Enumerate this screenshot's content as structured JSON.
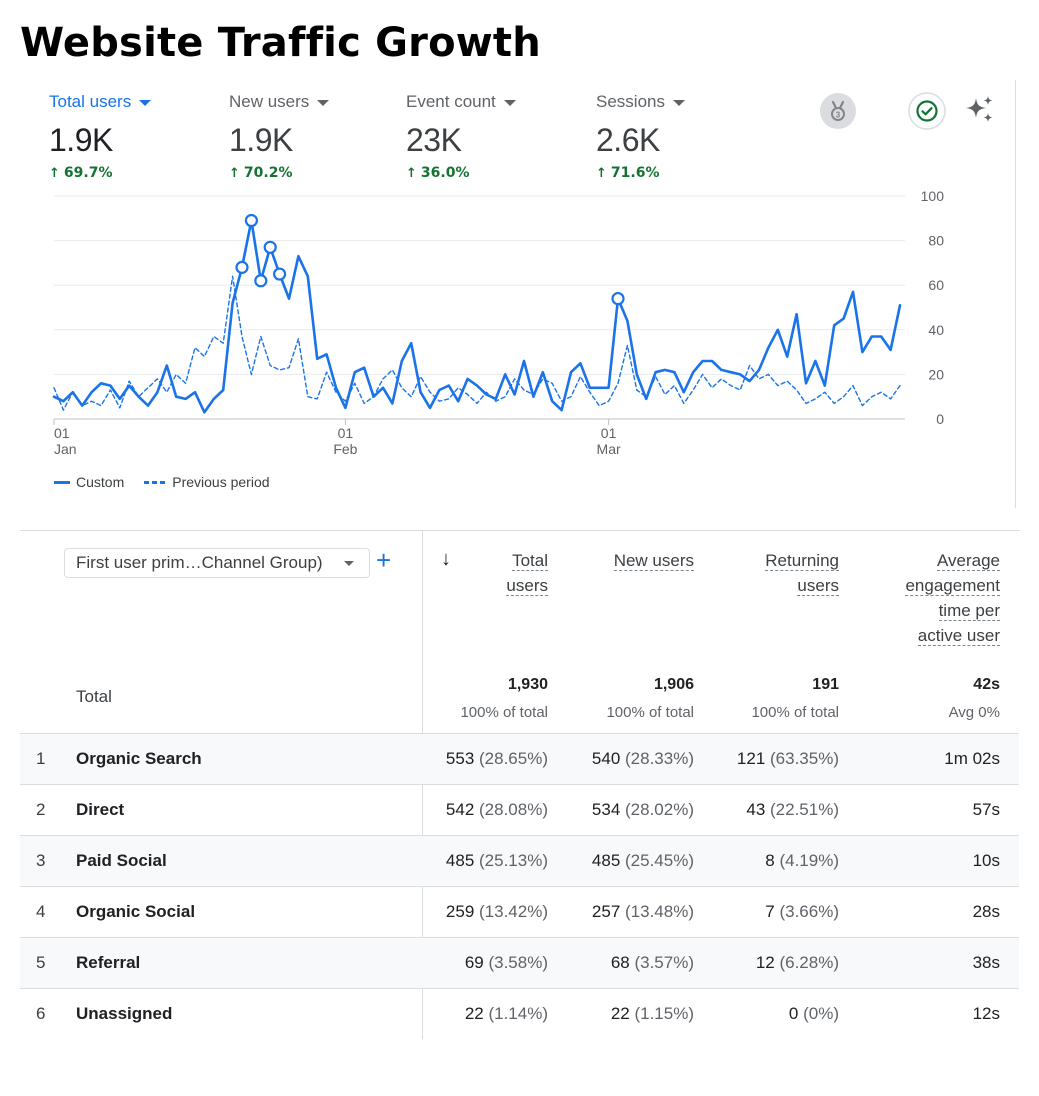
{
  "page_title": "Website Traffic Growth",
  "metrics": [
    {
      "label": "Total users",
      "value": "1.9K",
      "change": "69.7%",
      "active": true
    },
    {
      "label": "New users",
      "value": "1.9K",
      "change": "70.2%",
      "active": false
    },
    {
      "label": "Event count",
      "value": "23K",
      "change": "36.0%",
      "active": false
    },
    {
      "label": "Sessions",
      "value": "2.6K",
      "change": "71.6%",
      "active": false
    }
  ],
  "icons": {
    "insights_badge": "award-badge-icon",
    "status": "check-circle-icon",
    "ai": "sparkle-icon"
  },
  "colors": {
    "accent": "#1a73e8",
    "positive": "#137333",
    "grid": "#e8eaed"
  },
  "chart_data": {
    "type": "line",
    "y_ticks": [
      "100",
      "80",
      "60",
      "40",
      "20",
      "0"
    ],
    "ylim": [
      0,
      100
    ],
    "x_ticks": [
      {
        "day": "01",
        "month": "Jan"
      },
      {
        "day": "01",
        "month": "Feb"
      },
      {
        "day": "01",
        "month": "Mar"
      }
    ],
    "x_tick_index": [
      0,
      31,
      59
    ],
    "n_days": 91,
    "series": [
      {
        "name": "Custom",
        "style": "solid",
        "values": [
          10,
          8,
          12,
          6,
          12,
          16,
          15,
          9,
          15,
          10,
          6,
          12,
          24,
          10,
          9,
          12,
          3,
          9,
          13,
          52,
          68,
          89,
          62,
          77,
          65,
          54,
          73,
          64,
          27,
          29,
          14,
          5,
          21,
          23,
          10,
          14,
          7,
          26,
          34,
          12,
          5,
          13,
          15,
          8,
          18,
          15,
          11,
          9,
          20,
          11,
          26,
          10,
          21,
          8,
          4,
          21,
          25,
          14,
          14,
          14,
          54,
          44,
          20,
          9,
          21,
          22,
          21,
          12,
          21,
          26,
          26,
          22,
          21,
          20,
          17,
          22,
          32,
          40,
          28,
          47,
          16,
          26,
          15,
          42,
          45,
          57,
          30,
          37,
          37,
          31,
          51
        ],
        "markers": [
          20,
          21,
          22,
          23,
          24,
          60
        ]
      },
      {
        "name": "Previous period",
        "style": "dashed",
        "values": [
          14,
          4,
          12,
          6,
          8,
          6,
          13,
          5,
          17,
          10,
          14,
          18,
          12,
          20,
          16,
          32,
          28,
          37,
          34,
          64,
          37,
          20,
          37,
          24,
          22,
          23,
          36,
          10,
          9,
          21,
          12,
          8,
          16,
          7,
          10,
          18,
          22,
          14,
          10,
          19,
          12,
          8,
          9,
          14,
          11,
          7,
          12,
          8,
          10,
          18,
          13,
          11,
          18,
          16,
          8,
          10,
          19,
          12,
          6,
          8,
          16,
          33,
          13,
          10,
          19,
          11,
          15,
          7,
          13,
          20,
          14,
          18,
          15,
          13,
          24,
          18,
          20,
          15,
          17,
          13,
          7,
          9,
          12,
          7,
          10,
          15,
          6,
          10,
          12,
          9,
          15
        ]
      }
    ]
  },
  "legend": {
    "custom": "Custom",
    "previous": "Previous period"
  },
  "table": {
    "dimension_select": "First user prim…Channel Group)",
    "add_label": "+",
    "sort_arrow": "↓",
    "columns": [
      {
        "lines": [
          "Total",
          "users"
        ]
      },
      {
        "lines": [
          "New users"
        ]
      },
      {
        "lines": [
          "Returning",
          "users"
        ]
      },
      {
        "lines": [
          "Average",
          "engagement",
          "time per",
          "active user"
        ]
      }
    ],
    "total_label": "Total",
    "totals": [
      {
        "value": "1,930",
        "sub": "100% of total"
      },
      {
        "value": "1,906",
        "sub": "100% of total"
      },
      {
        "value": "191",
        "sub": "100% of total"
      },
      {
        "value": "42s",
        "sub": "Avg 0%"
      }
    ],
    "rows": [
      {
        "idx": "1",
        "name": "Organic Search",
        "c1": "553",
        "p1": "(28.65%)",
        "c2": "540",
        "p2": "(28.33%)",
        "c3": "121",
        "p3": "(63.35%)",
        "c4": "1m 02s"
      },
      {
        "idx": "2",
        "name": "Direct",
        "c1": "542",
        "p1": "(28.08%)",
        "c2": "534",
        "p2": "(28.02%)",
        "c3": "43",
        "p3": "(22.51%)",
        "c4": "57s"
      },
      {
        "idx": "3",
        "name": "Paid Social",
        "c1": "485",
        "p1": "(25.13%)",
        "c2": "485",
        "p2": "(25.45%)",
        "c3": "8",
        "p3": "(4.19%)",
        "c4": "10s"
      },
      {
        "idx": "4",
        "name": "Organic Social",
        "c1": "259",
        "p1": "(13.42%)",
        "c2": "257",
        "p2": "(13.48%)",
        "c3": "7",
        "p3": "(3.66%)",
        "c4": "28s"
      },
      {
        "idx": "5",
        "name": "Referral",
        "c1": "69",
        "p1": "(3.58%)",
        "c2": "68",
        "p2": "(3.57%)",
        "c3": "12",
        "p3": "(6.28%)",
        "c4": "38s"
      },
      {
        "idx": "6",
        "name": "Unassigned",
        "c1": "22",
        "p1": "(1.14%)",
        "c2": "22",
        "p2": "(1.15%)",
        "c3": "0",
        "p3": "(0%)",
        "c4": "12s"
      }
    ]
  }
}
